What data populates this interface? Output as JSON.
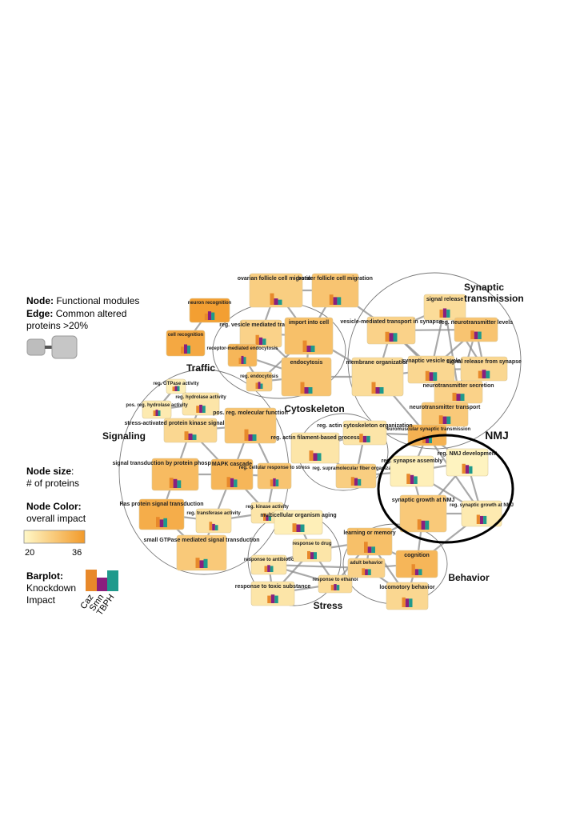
{
  "legend": {
    "node_title": "Node:",
    "node_text": "Functional modules",
    "edge_title": "Edge:",
    "edge_text": "Common altered",
    "edge_text2": "proteins >20%",
    "size_title": "Node size",
    "size_colon": ":",
    "size_text": "# of proteins",
    "color_title": "Node Color:",
    "color_text": "overall impact",
    "scale_min": "20",
    "scale_max": "36",
    "barplot_title": "Barplot:",
    "barplot_text1": "Knockdown",
    "barplot_text2": "Impact",
    "bar_labels": [
      "Caz",
      "Smn",
      "TBPH"
    ]
  },
  "colors": {
    "caz": "#e8892b",
    "smn": "#8a1f7e",
    "tbph": "#1f9a8c",
    "scale_low": "#fff8c8",
    "scale_high": "#f29a2a",
    "edge": "#8c8c8c",
    "group_outline": "#777777",
    "nmj_outline": "#000000"
  },
  "groups": [
    {
      "id": "traffic",
      "label": "Traffic"
    },
    {
      "id": "synaptic",
      "label": "Synaptic transmission"
    },
    {
      "id": "signaling",
      "label": "Signaling"
    },
    {
      "id": "cytoskeleton",
      "label": "Cytoskeleton"
    },
    {
      "id": "nmj",
      "label": "NMJ"
    },
    {
      "id": "stress",
      "label": "Stress"
    },
    {
      "id": "behavior",
      "label": "Behavior"
    }
  ],
  "nodes": [
    {
      "id": "neuron_recog",
      "label": "neuron recognition",
      "impact": 0.95,
      "bars": [
        0.6,
        0.8,
        0.7
      ]
    },
    {
      "id": "cell_recog",
      "label": "cell recognition",
      "impact": 0.85,
      "bars": [
        0.6,
        0.8,
        0.7
      ]
    },
    {
      "id": "ovarian",
      "label": "ovarian follicle cell migration",
      "impact": 0.45,
      "bars": [
        0.9,
        0.5,
        0.4
      ]
    },
    {
      "id": "border",
      "label": "border follicle cell migration",
      "impact": 0.55,
      "bars": [
        0.8,
        0.6,
        0.6
      ]
    },
    {
      "id": "vesicle_transport",
      "label": "reg. vesicle mediated transport",
      "impact": 0.4,
      "bars": [
        0.8,
        0.6,
        0.5
      ]
    },
    {
      "id": "import",
      "label": "import into cell",
      "impact": 0.6,
      "bars": [
        0.9,
        0.5,
        0.5
      ]
    },
    {
      "id": "receptor_endo",
      "label": "receptor-mediated endocytosis",
      "impact": 0.7,
      "bars": [
        0.6,
        0.8,
        0.7
      ]
    },
    {
      "id": "endocytosis",
      "label": "endocytosis",
      "impact": 0.55,
      "bars": [
        0.9,
        0.5,
        0.5
      ]
    },
    {
      "id": "reg_endo",
      "label": "reg. endocytosis",
      "impact": 0.45,
      "bars": [
        0.7,
        0.8,
        0.6
      ]
    },
    {
      "id": "gtpase",
      "label": "reg. GTPase activity",
      "impact": 0.1,
      "bars": [
        0.7,
        0.8,
        0.8
      ]
    },
    {
      "id": "hydrolase",
      "label": "reg. hydrolase activity",
      "impact": 0.2,
      "bars": [
        0.7,
        0.8,
        0.7
      ]
    },
    {
      "id": "pos_hydrolase",
      "label": "pos. reg. hydrolase activity",
      "impact": 0.15,
      "bars": [
        0.7,
        0.8,
        0.7
      ]
    },
    {
      "id": "sapk",
      "label": "stress-activated protein kinase signaling cascade",
      "impact": 0.35,
      "bars": [
        0.8,
        0.6,
        0.5
      ]
    },
    {
      "id": "pos_mol",
      "label": "pos. reg. molecular function",
      "impact": 0.55,
      "bars": [
        0.9,
        0.5,
        0.5
      ]
    },
    {
      "id": "signal_phos",
      "label": "signal transduction by protein phosphorylation",
      "impact": 0.65,
      "bars": [
        0.8,
        0.7,
        0.6
      ]
    },
    {
      "id": "mapk",
      "label": "MAPK cascade",
      "impact": 0.7,
      "bars": [
        0.8,
        0.7,
        0.6
      ]
    },
    {
      "id": "cell_stress",
      "label": "reg. cellular response to stress",
      "impact": 0.55,
      "bars": [
        0.6,
        0.7,
        0.6
      ]
    },
    {
      "id": "ras",
      "label": "Ras protein signal transduction",
      "impact": 0.8,
      "bars": [
        0.8,
        0.6,
        0.7
      ]
    },
    {
      "id": "transferase",
      "label": "reg. transferase activity",
      "impact": 0.25,
      "bars": [
        0.8,
        0.6,
        0.5
      ]
    },
    {
      "id": "kinase",
      "label": "reg. kinase activity",
      "impact": 0.2,
      "bars": [
        0.8,
        0.6,
        0.5
      ]
    },
    {
      "id": "small_gtpase",
      "label": "small GTPase mediated signal transduction",
      "impact": 0.5,
      "bars": [
        0.8,
        0.6,
        0.7
      ]
    },
    {
      "id": "signal_release",
      "label": "signal release",
      "impact": 0.3,
      "bars": [
        0.7,
        0.8,
        0.7
      ]
    },
    {
      "id": "neurotrans_levels",
      "label": "reg. neurotransmitter levels",
      "impact": 0.55,
      "bars": [
        0.8,
        0.7,
        0.7
      ]
    },
    {
      "id": "ves_synapse",
      "label": "vesicle-mediated transport in synapse",
      "impact": 0.4,
      "bars": [
        0.8,
        0.7,
        0.7
      ]
    },
    {
      "id": "membrane_org",
      "label": "membrane organization",
      "impact": 0.3,
      "bars": [
        0.9,
        0.5,
        0.5
      ]
    },
    {
      "id": "syn_ves_cycle",
      "label": "synaptic vesicle cycle",
      "impact": 0.35,
      "bars": [
        0.8,
        0.7,
        0.7
      ]
    },
    {
      "id": "release_synapse",
      "label": "signal release from synapse",
      "impact": 0.35,
      "bars": [
        0.7,
        0.8,
        0.7
      ]
    },
    {
      "id": "neurotrans_secr",
      "label": "neurotransmitter secretion",
      "impact": 0.4,
      "bars": [
        0.8,
        0.7,
        0.7
      ]
    },
    {
      "id": "neurotrans_transp",
      "label": "neurotransmitter transport",
      "impact": 0.5,
      "bars": [
        0.8,
        0.7,
        0.7
      ]
    },
    {
      "id": "nmj_transmission",
      "label": "neuromuscular synaptic transmission",
      "impact": 0.75,
      "bars": [
        0.8,
        0.7,
        0.7
      ]
    },
    {
      "id": "actin_cyto",
      "label": "reg. actin cytoskeleton organization",
      "impact": 0.2,
      "bars": [
        0.8,
        0.6,
        0.6
      ]
    },
    {
      "id": "actin_fil",
      "label": "reg. actin filament-based process",
      "impact": 0.2,
      "bars": [
        0.8,
        0.6,
        0.6
      ]
    },
    {
      "id": "supramol",
      "label": "reg. supramolecular fiber organization",
      "impact": 0.45,
      "bars": [
        0.8,
        0.7,
        0.6
      ]
    },
    {
      "id": "syn_assembly",
      "label": "reg. synapse assembly",
      "impact": 0.1,
      "bars": [
        0.8,
        0.7,
        0.6
      ]
    },
    {
      "id": "nmj_dev",
      "label": "reg. NMJ development",
      "impact": 0.05,
      "bars": [
        0.8,
        0.7,
        0.6
      ]
    },
    {
      "id": "syn_growth",
      "label": "synaptic growth at NMJ",
      "impact": 0.5,
      "bars": [
        0.8,
        0.7,
        0.7
      ]
    },
    {
      "id": "reg_syn_growth",
      "label": "reg. synaptic growth at NMJ",
      "impact": 0.15,
      "bars": [
        0.8,
        0.7,
        0.7
      ]
    },
    {
      "id": "multicell_aging",
      "label": "multicellular organism aging",
      "impact": 0.1,
      "bars": [
        0.8,
        0.7,
        0.7
      ]
    },
    {
      "id": "drug",
      "label": "response to drug",
      "impact": 0.2,
      "bars": [
        0.8,
        0.7,
        0.7
      ]
    },
    {
      "id": "antibiotic",
      "label": "response to antibiotic",
      "impact": 0.2,
      "bars": [
        0.7,
        0.8,
        0.7
      ]
    },
    {
      "id": "ethanol",
      "label": "response to ethanol",
      "impact": 0.3,
      "bars": [
        0.7,
        0.8,
        0.7
      ]
    },
    {
      "id": "toxic",
      "label": "response to toxic substance",
      "impact": 0.2,
      "bars": [
        0.7,
        0.8,
        0.7
      ]
    },
    {
      "id": "learning",
      "label": "learning or memory",
      "impact": 0.6,
      "bars": [
        0.9,
        0.5,
        0.5
      ]
    },
    {
      "id": "adult_behavior",
      "label": "adult behavior",
      "impact": 0.4,
      "bars": [
        0.8,
        0.7,
        0.7
      ]
    },
    {
      "id": "cognition",
      "label": "cognition",
      "impact": 0.7,
      "bars": [
        0.9,
        0.5,
        0.5
      ]
    },
    {
      "id": "locomotory",
      "label": "locomotory behavior",
      "impact": 0.35,
      "bars": [
        0.8,
        0.7,
        0.7
      ]
    }
  ],
  "edges": [
    [
      "neuron_recog",
      "cell_recog"
    ],
    [
      "ovarian",
      "border"
    ],
    [
      "ovarian",
      "import"
    ],
    [
      "border",
      "import"
    ],
    [
      "ovarian",
      "vesicle_transport"
    ],
    [
      "vesicle_transport",
      "import"
    ],
    [
      "vesicle_transport",
      "endocytosis"
    ],
    [
      "vesicle_transport",
      "receptor_endo"
    ],
    [
      "import",
      "endocytosis"
    ],
    [
      "receptor_endo",
      "endocytosis"
    ],
    [
      "receptor_endo",
      "reg_endo"
    ],
    [
      "endocytosis",
      "reg_endo"
    ],
    [
      "import",
      "reg_endo"
    ],
    [
      "endocytosis",
      "membrane_org"
    ],
    [
      "import",
      "membrane_org"
    ],
    [
      "border",
      "ves_synapse"
    ],
    [
      "gtpase",
      "hydrolase"
    ],
    [
      "hydrolase",
      "pos_hydrolase"
    ],
    [
      "gtpase",
      "pos_hydrolase"
    ],
    [
      "hydrolase",
      "sapk"
    ],
    [
      "sapk",
      "pos_mol"
    ],
    [
      "sapk",
      "signal_phos"
    ],
    [
      "sapk",
      "mapk"
    ],
    [
      "pos_mol",
      "mapk"
    ],
    [
      "signal_phos",
      "mapk"
    ],
    [
      "mapk",
      "cell_stress"
    ],
    [
      "signal_phos",
      "ras"
    ],
    [
      "ras",
      "transferase"
    ],
    [
      "mapk",
      "transferase"
    ],
    [
      "transferase",
      "kinase"
    ],
    [
      "mapk",
      "kinase"
    ],
    [
      "ras",
      "small_gtpase"
    ],
    [
      "transferase",
      "small_gtpase"
    ],
    [
      "pos_mol",
      "cell_stress"
    ],
    [
      "signal_release",
      "neurotrans_levels"
    ],
    [
      "signal_release",
      "ves_synapse"
    ],
    [
      "signal_release",
      "syn_ves_cycle"
    ],
    [
      "signal_release",
      "release_synapse"
    ],
    [
      "neurotrans_levels",
      "syn_ves_cycle"
    ],
    [
      "neurotrans_levels",
      "release_synapse"
    ],
    [
      "neurotrans_levels",
      "neurotrans_secr"
    ],
    [
      "ves_synapse",
      "syn_ves_cycle"
    ],
    [
      "ves_synapse",
      "membrane_org"
    ],
    [
      "ves_synapse",
      "neurotrans_secr"
    ],
    [
      "syn_ves_cycle",
      "release_synapse"
    ],
    [
      "syn_ves_cycle",
      "neurotrans_secr"
    ],
    [
      "syn_ves_cycle",
      "neurotrans_transp"
    ],
    [
      "release_synapse",
      "neurotrans_secr"
    ],
    [
      "neurotrans_secr",
      "neurotrans_transp"
    ],
    [
      "membrane_org",
      "syn_ves_cycle"
    ],
    [
      "membrane_org",
      "nmj_transmission"
    ],
    [
      "neurotrans_transp",
      "nmj_transmission"
    ],
    [
      "ves_synapse",
      "neurotrans_levels"
    ],
    [
      "signal_release",
      "neurotrans_secr"
    ],
    [
      "actin_cyto",
      "actin_fil"
    ],
    [
      "actin_cyto",
      "supramol"
    ],
    [
      "actin_fil",
      "supramol"
    ],
    [
      "actin_cyto",
      "nmj_transmission"
    ],
    [
      "nmj_transmission",
      "syn_assembly"
    ],
    [
      "nmj_transmission",
      "nmj_dev"
    ],
    [
      "syn_assembly",
      "nmj_dev"
    ],
    [
      "syn_assembly",
      "syn_growth"
    ],
    [
      "nmj_dev",
      "syn_growth"
    ],
    [
      "syn_growth",
      "reg_syn_growth"
    ],
    [
      "nmj_dev",
      "reg_syn_growth"
    ],
    [
      "syn_assembly",
      "reg_syn_growth"
    ],
    [
      "supramol",
      "syn_assembly"
    ],
    [
      "syn_growth",
      "cognition"
    ],
    [
      "syn_growth",
      "learning"
    ],
    [
      "reg_syn_growth",
      "cognition"
    ],
    [
      "learning",
      "cognition"
    ],
    [
      "learning",
      "adult_behavior"
    ],
    [
      "cognition",
      "adult_behavior"
    ],
    [
      "adult_behavior",
      "locomotory"
    ],
    [
      "cognition",
      "locomotory"
    ],
    [
      "learning",
      "locomotory"
    ],
    [
      "multicell_aging",
      "drug"
    ],
    [
      "drug",
      "antibiotic"
    ],
    [
      "drug",
      "ethanol"
    ],
    [
      "antibiotic",
      "toxic"
    ],
    [
      "antibiotic",
      "ethanol"
    ],
    [
      "ethanol",
      "toxic"
    ],
    [
      "drug",
      "toxic"
    ],
    [
      "ethanol",
      "adult_behavior"
    ],
    [
      "drug",
      "learning"
    ],
    [
      "ethanol",
      "learning"
    ],
    [
      "antibiotic",
      "adult_behavior"
    ],
    [
      "kinase",
      "cell_stress"
    ],
    [
      "nmj_transmission",
      "reg_syn_growth"
    ]
  ]
}
